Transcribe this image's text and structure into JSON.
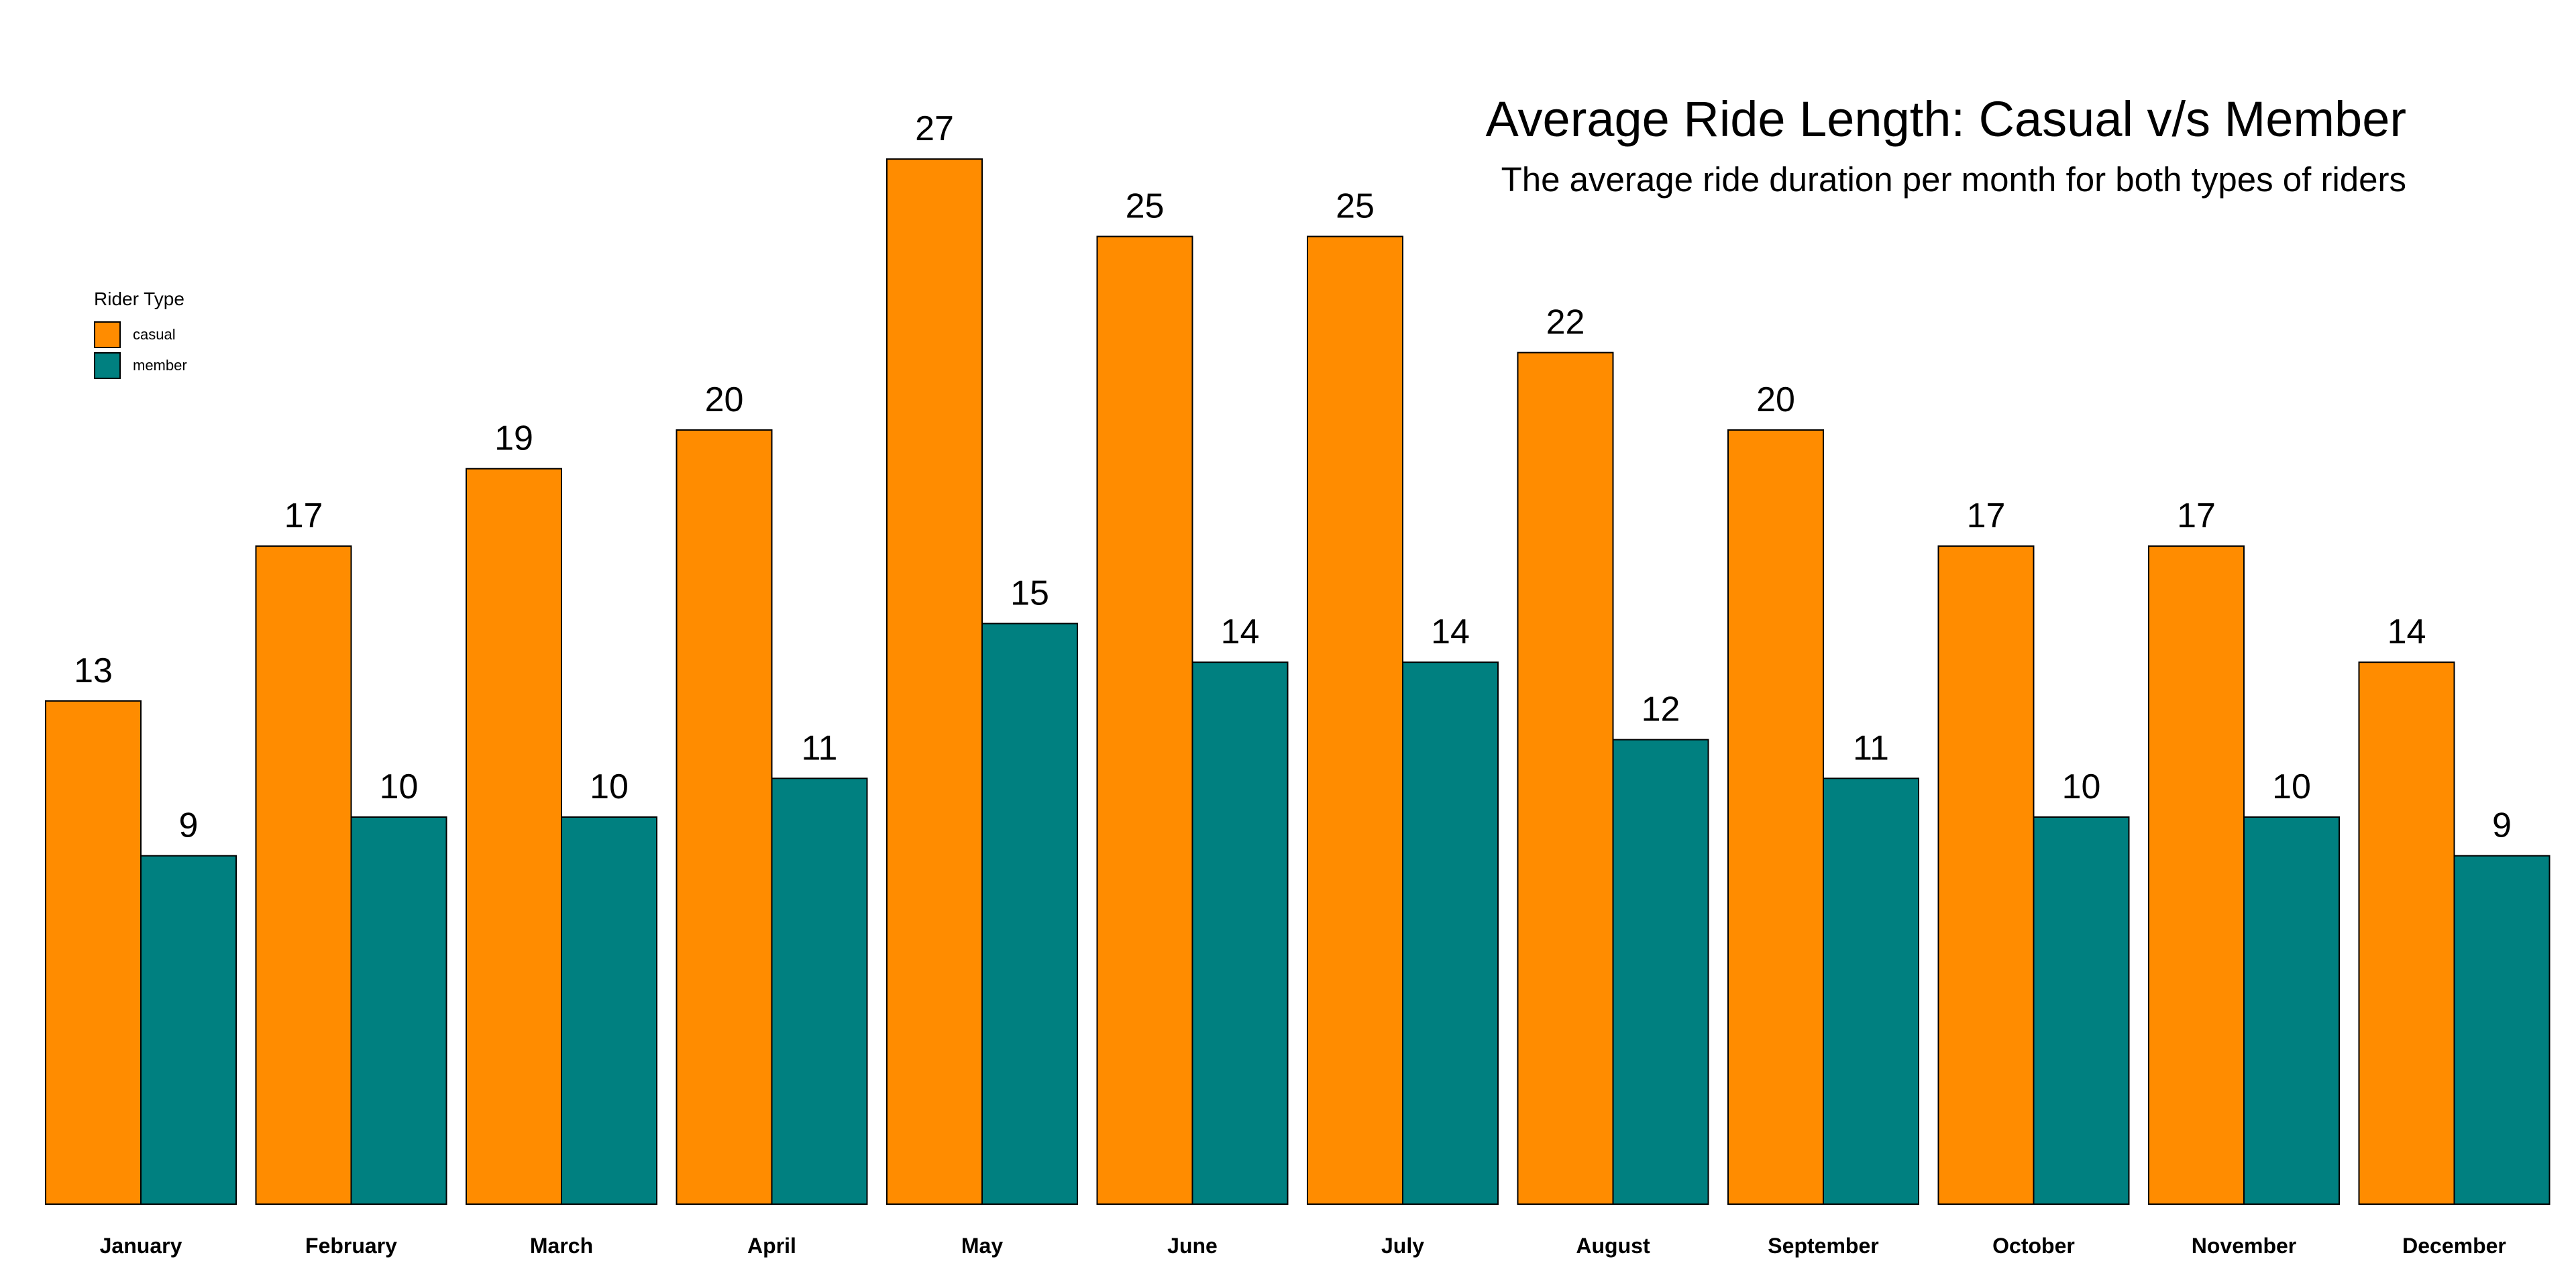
{
  "chart_data": {
    "type": "bar",
    "title": "Average Ride Length: Casual v/s Member",
    "subtitle": "The average ride duration per month for both types of riders",
    "categories": [
      "January",
      "February",
      "March",
      "April",
      "May",
      "June",
      "July",
      "August",
      "September",
      "October",
      "November",
      "December"
    ],
    "series": [
      {
        "name": "casual",
        "color": "#FF8C00",
        "values": [
          13,
          17,
          19,
          20,
          27,
          25,
          25,
          22,
          20,
          17,
          17,
          14
        ]
      },
      {
        "name": "member",
        "color": "#008080",
        "values": [
          9,
          10,
          10,
          11,
          15,
          14,
          14,
          12,
          11,
          10,
          10,
          9
        ]
      }
    ],
    "legend": {
      "title": "Rider Type",
      "position": "top-left"
    },
    "ylim": [
      0,
      27
    ],
    "grid": false,
    "xlabel": "",
    "ylabel": ""
  }
}
